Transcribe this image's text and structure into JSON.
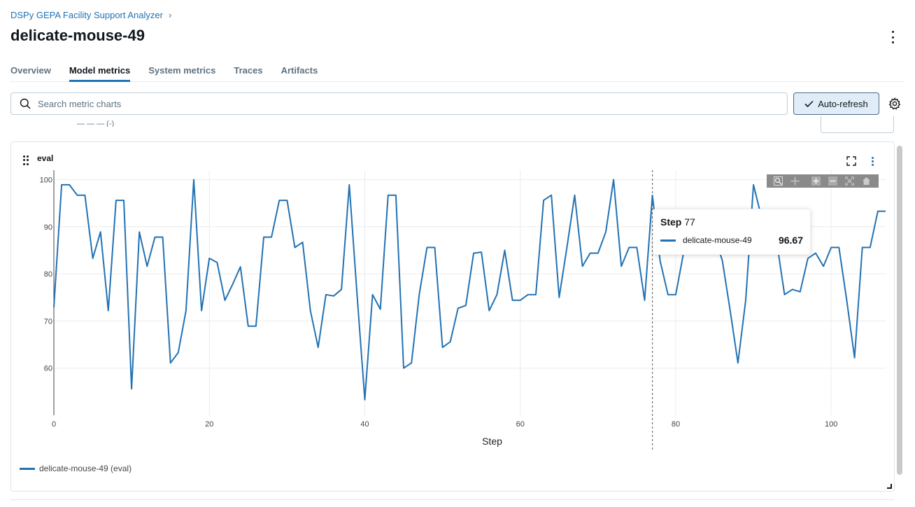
{
  "breadcrumb": {
    "experiment": "DSPy GEPA Facility Support Analyzer",
    "separator": "›"
  },
  "page_title": "delicate-mouse-49",
  "tabs": [
    {
      "label": "Overview",
      "active": false
    },
    {
      "label": "Model metrics",
      "active": true
    },
    {
      "label": "System metrics",
      "active": false
    },
    {
      "label": "Traces",
      "active": false
    },
    {
      "label": "Artifacts",
      "active": false
    }
  ],
  "search": {
    "placeholder": "Search metric charts",
    "value": ""
  },
  "toolbar": {
    "auto_refresh_label": "Auto-refresh",
    "auto_refresh_checked": true
  },
  "peek": {
    "text": "— — — (-)"
  },
  "chart": {
    "title": "eval",
    "icons": [
      "drag-handle-icon",
      "expand-icon",
      "kebab-icon"
    ],
    "modebar": [
      "zoom-icon",
      "pan-icon",
      "zoom-in-icon",
      "zoom-out-icon",
      "autoscale-icon",
      "reset-axes-icon"
    ],
    "tooltip": {
      "step_label": "Step",
      "step_value": "77",
      "run": "delicate-mouse-49",
      "value": "96.67"
    },
    "legend": "delicate-mouse-49 (eval)"
  },
  "colors": {
    "accent": "#2272b4",
    "series": "#2272b4"
  },
  "chart_data": {
    "type": "line",
    "title": "eval",
    "xlabel": "Step",
    "ylabel": "",
    "xlim": [
      0,
      107
    ],
    "ylim": [
      50,
      102
    ],
    "xticks": [
      0,
      20,
      40,
      60,
      80,
      100
    ],
    "yticks": [
      60,
      70,
      80,
      90,
      100
    ],
    "grid": true,
    "legend_placement": "bottom-left",
    "hover_step": 77,
    "series": [
      {
        "name": "delicate-mouse-49 (eval)",
        "x": [
          0,
          1,
          2,
          3,
          4,
          5,
          6,
          7,
          8,
          9,
          10,
          11,
          12,
          13,
          14,
          15,
          16,
          17,
          18,
          19,
          20,
          21,
          22,
          23,
          24,
          25,
          26,
          27,
          28,
          29,
          30,
          31,
          32,
          33,
          34,
          35,
          36,
          37,
          38,
          39,
          40,
          41,
          42,
          43,
          44,
          45,
          46,
          47,
          48,
          49,
          50,
          51,
          52,
          53,
          54,
          55,
          56,
          57,
          58,
          59,
          60,
          61,
          62,
          63,
          64,
          65,
          66,
          67,
          68,
          69,
          70,
          71,
          72,
          73,
          74,
          75,
          76,
          77,
          78,
          79,
          80,
          81,
          82,
          83,
          84,
          85,
          86,
          87,
          88,
          89,
          90,
          91,
          92,
          93,
          94,
          95,
          96,
          97,
          98,
          99,
          100,
          101,
          102,
          103,
          104,
          105,
          106,
          107
        ],
        "y": [
          72.9,
          98.9,
          98.9,
          96.7,
          96.7,
          83.3,
          88.9,
          72.2,
          95.6,
          95.6,
          55.6,
          88.9,
          81.6,
          87.8,
          87.8,
          61.1,
          63.3,
          72.2,
          100,
          72.2,
          83.3,
          82.4,
          74.4,
          77.8,
          81.5,
          68.9,
          68.9,
          87.8,
          87.8,
          95.6,
          95.6,
          85.6,
          86.7,
          72.2,
          64.4,
          75.6,
          75.3,
          76.7,
          98.9,
          75.6,
          53.3,
          75.6,
          72.5,
          96.7,
          96.7,
          60,
          61.1,
          75.6,
          85.6,
          85.6,
          64.4,
          65.6,
          72.7,
          73.3,
          84.4,
          84.6,
          72.2,
          75.6,
          85,
          74.4,
          74.4,
          75.6,
          75.6,
          95.6,
          96.7,
          75,
          85.6,
          96.7,
          81.6,
          84.4,
          84.4,
          88.9,
          100,
          81.6,
          85.6,
          85.6,
          74.4,
          96.67,
          82.7,
          75.6,
          75.6,
          84.4,
          89.1,
          89.4,
          89.4,
          87.8,
          82.8,
          72.2,
          61.1,
          74.4,
          98.9,
          92.2,
          85.6,
          86.7,
          75.6,
          76.7,
          76.2,
          83.3,
          84.4,
          81.6,
          85.6,
          85.6,
          74.4,
          62.2,
          85.6,
          85.6,
          93.3,
          93.3
        ]
      }
    ]
  }
}
